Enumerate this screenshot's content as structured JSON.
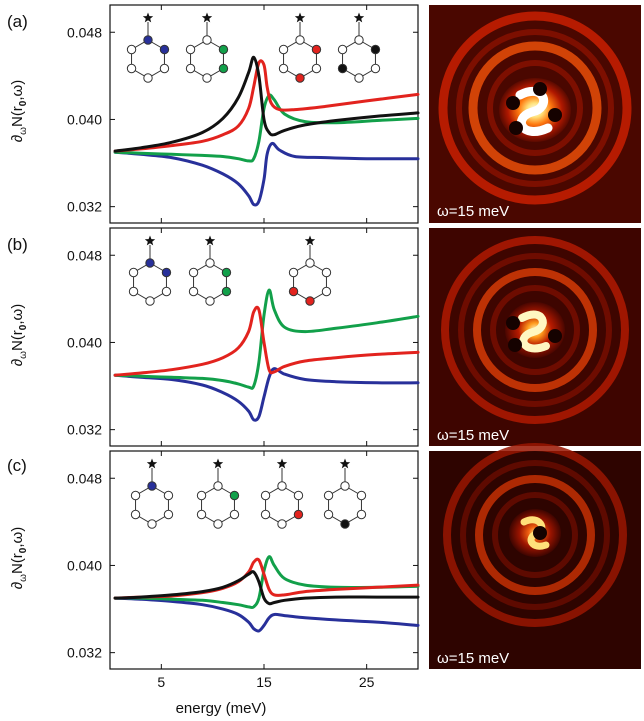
{
  "figure": {
    "xlabel": "energy (meV)",
    "ylabel_main": "∂",
    "ylabel_sub": "ω",
    "ylabel_rest": "N(r",
    "ylabel_r_sub": "0",
    "ylabel_end": ",ω)",
    "map_label": "ω=15 meV"
  },
  "colors": {
    "blue": "#28309a",
    "green": "#12a04a",
    "red": "#e2231e",
    "black": "#111111"
  },
  "chart_data": [
    {
      "panel": "(a)",
      "type": "line",
      "xlim": [
        0,
        30
      ],
      "ylim": [
        0.0305,
        0.0505
      ],
      "xticks": [
        5,
        15,
        25
      ],
      "yticks": [
        0.032,
        0.04,
        0.048
      ],
      "ytick_labels": [
        "0.032",
        "0.040",
        "0.048"
      ],
      "show_x_ticklabels": false,
      "series": [
        {
          "color": "blue",
          "x": [
            0.5,
            3,
            6,
            9,
            11,
            12.5,
            13.5,
            14,
            14.5,
            15,
            15.3,
            15.8,
            16.5,
            18,
            21,
            25,
            30
          ],
          "y": [
            0.037,
            0.0368,
            0.0365,
            0.0358,
            0.035,
            0.0341,
            0.033,
            0.0322,
            0.0325,
            0.0345,
            0.0368,
            0.0378,
            0.0372,
            0.0366,
            0.0365,
            0.0364,
            0.0364
          ]
        },
        {
          "color": "green",
          "x": [
            0.5,
            3,
            6,
            9,
            11,
            12.5,
            13.5,
            14,
            14.5,
            15,
            15.5,
            16,
            17,
            19,
            22,
            26,
            30
          ],
          "y": [
            0.037,
            0.0369,
            0.0368,
            0.0367,
            0.0366,
            0.0364,
            0.0362,
            0.0364,
            0.038,
            0.041,
            0.0422,
            0.0418,
            0.0405,
            0.0398,
            0.0397,
            0.0399,
            0.0401
          ]
        },
        {
          "color": "red",
          "x": [
            0.5,
            3,
            6,
            9,
            11,
            12.5,
            13.5,
            14,
            14.5,
            15,
            15.3,
            15.7,
            16.5,
            18,
            21,
            25,
            30
          ],
          "y": [
            0.0371,
            0.0373,
            0.0376,
            0.038,
            0.0386,
            0.0394,
            0.041,
            0.043,
            0.0452,
            0.045,
            0.043,
            0.0415,
            0.0409,
            0.0409,
            0.0412,
            0.0417,
            0.0423
          ]
        },
        {
          "color": "black",
          "x": [
            0.5,
            3,
            6,
            9,
            11,
            12.5,
            13.5,
            14,
            14.5,
            15,
            15.5,
            16,
            17,
            19,
            22,
            26,
            30
          ],
          "y": [
            0.0371,
            0.0374,
            0.0379,
            0.0388,
            0.0401,
            0.042,
            0.0443,
            0.0457,
            0.044,
            0.04,
            0.0388,
            0.0386,
            0.039,
            0.0395,
            0.0399,
            0.0403,
            0.0406
          ]
        }
      ]
    },
    {
      "panel": "(b)",
      "type": "line",
      "xlim": [
        0,
        30
      ],
      "ylim": [
        0.0305,
        0.0505
      ],
      "xticks": [
        5,
        15,
        25
      ],
      "yticks": [
        0.032,
        0.04,
        0.048
      ],
      "ytick_labels": [
        "0.032",
        "0.040",
        "0.048"
      ],
      "show_x_ticklabels": false,
      "series": [
        {
          "color": "blue",
          "x": [
            0.5,
            3,
            6,
            9,
            11,
            12.5,
            13.5,
            14,
            14.5,
            15,
            15.5,
            16,
            17,
            19,
            22,
            26,
            30
          ],
          "y": [
            0.037,
            0.0368,
            0.0366,
            0.0361,
            0.0354,
            0.0346,
            0.0337,
            0.0329,
            0.0332,
            0.035,
            0.0368,
            0.0376,
            0.0371,
            0.0366,
            0.0364,
            0.0363,
            0.0363
          ]
        },
        {
          "color": "green",
          "x": [
            0.5,
            3,
            6,
            9,
            11,
            12.5,
            13.5,
            14,
            14.5,
            15,
            15.5,
            16,
            17,
            19,
            22,
            26,
            30
          ],
          "y": [
            0.037,
            0.0369,
            0.0368,
            0.0367,
            0.0365,
            0.0362,
            0.0359,
            0.036,
            0.0382,
            0.0425,
            0.0448,
            0.043,
            0.0414,
            0.041,
            0.0413,
            0.0418,
            0.0424
          ]
        },
        {
          "color": "red",
          "x": [
            0.5,
            3,
            6,
            9,
            11,
            12.5,
            13.5,
            14,
            14.5,
            15,
            15.5,
            16,
            17,
            19,
            22,
            26,
            30
          ],
          "y": [
            0.037,
            0.0372,
            0.0375,
            0.038,
            0.0386,
            0.0395,
            0.041,
            0.0428,
            0.043,
            0.04,
            0.0375,
            0.0373,
            0.0378,
            0.0383,
            0.0386,
            0.0389,
            0.0391
          ]
        }
      ]
    },
    {
      "panel": "(c)",
      "type": "line",
      "xlim": [
        0,
        30
      ],
      "ylim": [
        0.0305,
        0.0505
      ],
      "xticks": [
        5,
        15,
        25
      ],
      "yticks": [
        0.032,
        0.04,
        0.048
      ],
      "ytick_labels": [
        "0.032",
        "0.040",
        "0.048"
      ],
      "show_x_ticklabels": true,
      "xtick_labels": [
        "5",
        "15",
        "25"
      ],
      "series": [
        {
          "color": "blue",
          "x": [
            0.5,
            3,
            6,
            9,
            11,
            12.5,
            13.5,
            14,
            14.5,
            15,
            15.5,
            16,
            17,
            19,
            22,
            26,
            30
          ],
          "y": [
            0.037,
            0.0369,
            0.0367,
            0.0364,
            0.036,
            0.0355,
            0.0348,
            0.0342,
            0.034,
            0.0345,
            0.0352,
            0.0355,
            0.0354,
            0.0352,
            0.035,
            0.0348,
            0.0345
          ]
        },
        {
          "color": "green",
          "x": [
            0.5,
            3,
            6,
            9,
            11,
            12.5,
            13.5,
            14,
            14.5,
            15,
            15.5,
            16,
            17,
            19,
            22,
            26,
            30
          ],
          "y": [
            0.037,
            0.037,
            0.0369,
            0.0368,
            0.0366,
            0.0364,
            0.0362,
            0.0362,
            0.037,
            0.0395,
            0.0408,
            0.04,
            0.0388,
            0.0382,
            0.038,
            0.038,
            0.0381
          ]
        },
        {
          "color": "red",
          "x": [
            0.5,
            3,
            6,
            9,
            11,
            12.5,
            13.5,
            14,
            14.5,
            15,
            15.5,
            16,
            17,
            19,
            22,
            26,
            30
          ],
          "y": [
            0.037,
            0.0371,
            0.0372,
            0.0375,
            0.0379,
            0.0385,
            0.0394,
            0.0403,
            0.0405,
            0.0392,
            0.0378,
            0.0373,
            0.0373,
            0.0376,
            0.0378,
            0.038,
            0.0382
          ]
        },
        {
          "color": "black",
          "x": [
            0.5,
            3,
            6,
            9,
            11,
            12.5,
            13.5,
            14,
            14.5,
            15,
            15.5,
            16,
            17,
            19,
            22,
            26,
            30
          ],
          "y": [
            0.037,
            0.0371,
            0.0373,
            0.0376,
            0.038,
            0.0386,
            0.0392,
            0.0394,
            0.0385,
            0.037,
            0.0365,
            0.0366,
            0.0368,
            0.037,
            0.0371,
            0.0371,
            0.0371
          ]
        }
      ]
    }
  ],
  "insets": [
    [
      {
        "marker": "blue",
        "sites": [
          0,
          1
        ]
      },
      {
        "marker": "green",
        "sites": [
          1,
          2
        ]
      },
      {
        "marker": "red",
        "sites": [
          1,
          3
        ]
      },
      {
        "marker": "black",
        "sites": [
          1,
          4
        ]
      }
    ],
    [
      {
        "marker": "blue",
        "sites": [
          0,
          1
        ]
      },
      {
        "marker": "green",
        "sites": [
          1,
          2
        ]
      },
      {
        "marker": "red",
        "sites": [
          3,
          4
        ]
      }
    ],
    [
      {
        "marker": "blue",
        "sites": [
          0
        ]
      },
      {
        "marker": "green",
        "sites": [
          1
        ]
      },
      {
        "marker": "red",
        "sites": [
          2
        ]
      },
      {
        "marker": "black",
        "sites": [
          3
        ]
      }
    ]
  ]
}
